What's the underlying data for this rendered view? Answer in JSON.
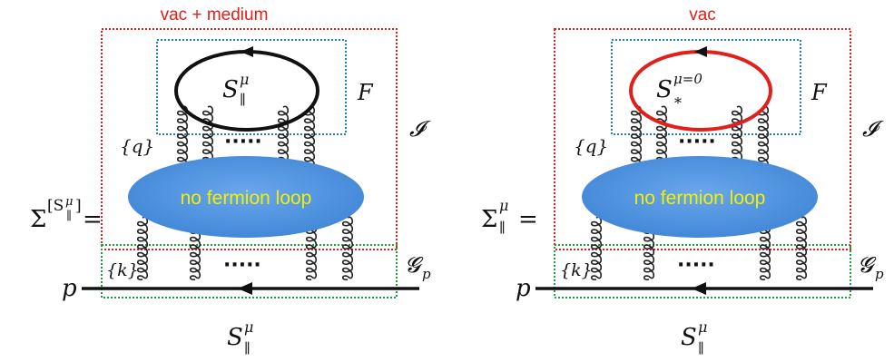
{
  "left": {
    "title": "vac + medium",
    "lhs": "Σ",
    "lhs_sup": "[S",
    "lhs_sup_mu": "μ",
    "lhs_sup_sub": "∥",
    "lhs_sup_close": "]",
    "equals": "=",
    "loop_S": "S",
    "loop_sup": "μ",
    "loop_sub": "∥",
    "F": "F",
    "I": "𝓘",
    "q": "{q}",
    "dots_top": "·····",
    "blob": "no fermion loop",
    "k": "{k}",
    "dots_bottom": "·····",
    "G": "𝓖",
    "G_sub": "p",
    "p": "p",
    "bottom_S": "S",
    "bottom_sup": "μ",
    "bottom_sub": "∥",
    "loop_color": "#111111"
  },
  "right": {
    "title": "vac",
    "lhs": "Σ",
    "lhs_sup": "μ",
    "lhs_sub": "∥",
    "equals": "=",
    "loop_S": "S",
    "loop_sup": "μ=0",
    "loop_sub": "*",
    "F": "F",
    "I": "𝓘",
    "q": "{q}",
    "dots_top": "·····",
    "blob": "no fermion loop",
    "k": "{k}",
    "dots_bottom": "·····",
    "G": "𝓖",
    "G_sub": "p",
    "p": "p",
    "bottom_S": "S",
    "bottom_sup": "μ",
    "bottom_sub": "∥",
    "loop_color": "#e0201a"
  },
  "colors": {
    "I_box": "#e0201a",
    "F_box": "#1f7fb8",
    "G_box": "#1aa33a",
    "blob_fill": "#4a8fd8",
    "blob_text": "#f2f000"
  }
}
